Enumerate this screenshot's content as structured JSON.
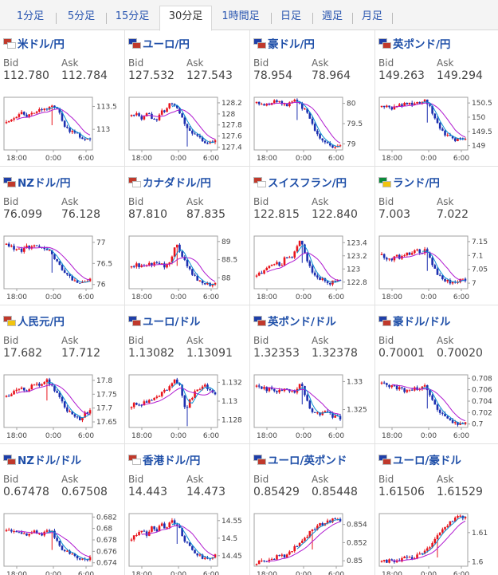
{
  "tabs": [
    {
      "label": "1分足",
      "active": false
    },
    {
      "label": "5分足",
      "active": false
    },
    {
      "label": "15分足",
      "active": false
    },
    {
      "label": "30分足",
      "active": true
    },
    {
      "label": "1時間足",
      "active": false
    },
    {
      "label": "日足",
      "active": false
    },
    {
      "label": "週足",
      "active": false
    },
    {
      "label": "月足",
      "active": false
    }
  ],
  "labels": {
    "bid": "Bid",
    "ask": "Ask"
  },
  "colors": {
    "up": "#e8141c",
    "down": "#1c2fb0",
    "ma_fast": "#0a8fd1",
    "ma_slow": "#b01ad0",
    "frame": "#a0a0a0",
    "title": "#1f4fa8"
  },
  "pairs": [
    {
      "name": "米ドル/円",
      "bid": "112.780",
      "ask": "112.784",
      "flag_colors": [
        "#c0392b",
        "#ffffff"
      ],
      "chart_data": {
        "type": "candlestick",
        "x_ticks": [
          "18:00",
          "0:00",
          "6:00"
        ],
        "y_ticks": [
          "113.5",
          "113"
        ],
        "ylim": [
          112.55,
          113.7
        ],
        "path": [
          113.15,
          113.2,
          113.3,
          113.35,
          113.3,
          113.4,
          113.35,
          113.45,
          113.4,
          113.55,
          113.5,
          113.3,
          113.05,
          112.95,
          112.9,
          112.85,
          112.8,
          112.78
        ],
        "spike": 9
      }
    },
    {
      "name": "ユーロ/円",
      "bid": "127.532",
      "ask": "127.543",
      "flag_colors": [
        "#1f3fa8",
        "#c0392b"
      ],
      "chart_data": {
        "type": "candlestick",
        "x_ticks": [
          "18:00",
          "0:00",
          "6:00"
        ],
        "y_ticks": [
          "128.2",
          "128",
          "127.8",
          "127.6",
          "127.4"
        ],
        "ylim": [
          127.35,
          128.3
        ],
        "path": [
          127.95,
          128.0,
          127.9,
          128.05,
          127.95,
          127.85,
          128.1,
          128.05,
          128.2,
          128.15,
          128.0,
          127.8,
          127.7,
          127.6,
          127.55,
          127.45,
          127.5,
          127.53
        ],
        "spike": 11
      }
    },
    {
      "name": "豪ドル/円",
      "bid": "78.954",
      "ask": "78.964",
      "flag_colors": [
        "#1f3fa8",
        "#c0392b"
      ],
      "chart_data": {
        "type": "candlestick",
        "x_ticks": [
          "18:00",
          "0:00",
          "6:00"
        ],
        "y_ticks": [
          "80",
          "79.5",
          "79"
        ],
        "ylim": [
          78.85,
          80.15
        ],
        "path": [
          80.05,
          80.0,
          79.95,
          80.0,
          80.05,
          80.0,
          79.95,
          80.05,
          80.1,
          79.95,
          79.8,
          79.55,
          79.3,
          79.1,
          79.0,
          78.95,
          78.9,
          78.95
        ],
        "spike": 8
      }
    },
    {
      "name": "英ポンド/円",
      "bid": "149.263",
      "ask": "149.294",
      "flag_colors": [
        "#1f3fa8",
        "#c0392b"
      ],
      "chart_data": {
        "type": "candlestick",
        "x_ticks": [
          "18:00",
          "0:00",
          "6:00"
        ],
        "y_ticks": [
          "150.5",
          "150",
          "149.5",
          "149"
        ],
        "ylim": [
          148.85,
          150.7
        ],
        "path": [
          150.35,
          150.4,
          150.3,
          150.45,
          150.4,
          150.5,
          150.45,
          150.55,
          150.5,
          150.6,
          150.3,
          149.9,
          149.6,
          149.4,
          149.3,
          149.2,
          149.25,
          149.28
        ],
        "spike": 9
      }
    },
    {
      "name": "NZドル/円",
      "bid": "76.099",
      "ask": "76.128",
      "flag_colors": [
        "#1f3fa8",
        "#c0392b"
      ],
      "chart_data": {
        "type": "candlestick",
        "x_ticks": [
          "18:00",
          "0:00",
          "6:00"
        ],
        "y_ticks": [
          "77",
          "76.5",
          "76"
        ],
        "ylim": [
          75.9,
          77.15
        ],
        "path": [
          76.95,
          76.9,
          76.85,
          76.8,
          76.9,
          76.85,
          76.95,
          76.9,
          76.85,
          76.8,
          76.6,
          76.4,
          76.25,
          76.15,
          76.1,
          76.05,
          76.08,
          76.1
        ],
        "spike": 9
      }
    },
    {
      "name": "カナダドル/円",
      "bid": "87.810",
      "ask": "87.835",
      "flag_colors": [
        "#c0392b",
        "#ffffff"
      ],
      "chart_data": {
        "type": "candlestick",
        "x_ticks": [
          "18:00",
          "0:00",
          "6:00"
        ],
        "y_ticks": [
          "89",
          "88.5",
          "88"
        ],
        "ylim": [
          87.7,
          89.15
        ],
        "path": [
          88.3,
          88.35,
          88.3,
          88.4,
          88.35,
          88.45,
          88.4,
          88.3,
          88.5,
          88.95,
          88.7,
          88.4,
          88.2,
          88.0,
          87.9,
          87.85,
          87.8,
          87.82
        ],
        "spike": 9
      }
    },
    {
      "name": "スイスフラン/円",
      "bid": "122.815",
      "ask": "122.840",
      "flag_colors": [
        "#c0392b",
        "#ffffff"
      ],
      "chart_data": {
        "type": "candlestick",
        "x_ticks": [
          "18:00",
          "0:00",
          "6:00"
        ],
        "y_ticks": [
          "123.4",
          "123.2",
          "123",
          "122.8"
        ],
        "ylim": [
          122.7,
          123.5
        ],
        "path": [
          122.9,
          122.95,
          123.0,
          123.05,
          123.1,
          123.05,
          123.2,
          123.15,
          123.3,
          123.45,
          123.2,
          123.0,
          122.9,
          122.85,
          122.8,
          122.78,
          122.82,
          122.83
        ],
        "spike": 9
      }
    },
    {
      "name": "ランド/円",
      "bid": "7.003",
      "ask": "7.022",
      "flag_colors": [
        "#0a8a3a",
        "#f1c40f"
      ],
      "chart_data": {
        "type": "candlestick",
        "x_ticks": [
          "18:00",
          "0:00",
          "6:00"
        ],
        "y_ticks": [
          "7.15",
          "7.1",
          "7.05",
          "7"
        ],
        "ylim": [
          6.98,
          7.17
        ],
        "path": [
          7.1,
          7.09,
          7.08,
          7.1,
          7.09,
          7.11,
          7.1,
          7.12,
          7.11,
          7.13,
          7.08,
          7.04,
          7.02,
          7.01,
          7.005,
          7.0,
          7.01,
          7.01
        ],
        "spike": 9
      }
    },
    {
      "name": "人民元/円",
      "bid": "17.682",
      "ask": "17.712",
      "flag_colors": [
        "#c0392b",
        "#f1c40f"
      ],
      "chart_data": {
        "type": "candlestick",
        "x_ticks": [
          "18:00",
          "0:00",
          "6:00"
        ],
        "y_ticks": [
          "17.8",
          "17.75",
          "17.7",
          "17.65"
        ],
        "ylim": [
          17.63,
          17.82
        ],
        "path": [
          17.74,
          17.75,
          17.76,
          17.77,
          17.76,
          17.78,
          17.79,
          17.78,
          17.8,
          17.79,
          17.76,
          17.73,
          17.7,
          17.68,
          17.67,
          17.66,
          17.68,
          17.69
        ],
        "spike": 8
      }
    },
    {
      "name": "ユーロ/ドル",
      "bid": "1.13082",
      "ask": "1.13091",
      "flag_colors": [
        "#1f3fa8",
        "#c0392b"
      ],
      "chart_data": {
        "type": "candlestick",
        "x_ticks": [
          "18:00",
          "0:00",
          "6:00"
        ],
        "y_ticks": [
          "1.132",
          "1.13",
          "1.128"
        ],
        "ylim": [
          1.1272,
          1.1328
        ],
        "path": [
          1.1295,
          1.1298,
          1.1296,
          1.13,
          1.1302,
          1.1305,
          1.1308,
          1.1312,
          1.1318,
          1.1322,
          1.1316,
          1.1288,
          1.1302,
          1.131,
          1.1314,
          1.1316,
          1.131,
          1.1308
        ],
        "spike": 11
      }
    },
    {
      "name": "英ポンド/ドル",
      "bid": "1.32353",
      "ask": "1.32378",
      "flag_colors": [
        "#1f3fa8",
        "#c0392b"
      ],
      "chart_data": {
        "type": "candlestick",
        "x_ticks": [
          "18:00",
          "0:00",
          "6:00"
        ],
        "y_ticks": [
          "1.33",
          "1.325"
        ],
        "ylim": [
          1.3218,
          1.3312
        ],
        "path": [
          1.3292,
          1.329,
          1.3286,
          1.3288,
          1.3284,
          1.3282,
          1.3286,
          1.328,
          1.3284,
          1.33,
          1.327,
          1.3248,
          1.324,
          1.3244,
          1.3246,
          1.324,
          1.3236,
          1.3235
        ],
        "spike": 9
      }
    },
    {
      "name": "豪ドル/ドル",
      "bid": "0.70001",
      "ask": "0.70020",
      "flag_colors": [
        "#1f3fa8",
        "#c0392b"
      ],
      "chart_data": {
        "type": "candlestick",
        "x_ticks": [
          "18:00",
          "0:00",
          "6:00"
        ],
        "y_ticks": [
          "0.708",
          "0.706",
          "0.704",
          "0.702",
          "0.7"
        ],
        "ylim": [
          0.6994,
          0.7086
        ],
        "path": [
          0.7074,
          0.707,
          0.7066,
          0.7064,
          0.706,
          0.7058,
          0.706,
          0.7062,
          0.7064,
          0.7066,
          0.7048,
          0.703,
          0.7018,
          0.701,
          0.7004,
          0.7002,
          0.7,
          0.7001
        ],
        "spike": 9
      }
    },
    {
      "name": "NZドル/ドル",
      "bid": "0.67478",
      "ask": "0.67508",
      "flag_colors": [
        "#1f3fa8",
        "#c0392b"
      ],
      "chart_data": {
        "type": "candlestick",
        "x_ticks": [
          "18:00",
          "0:00",
          "6:00"
        ],
        "y_ticks": [
          "0.682",
          "0.68",
          "0.678",
          "0.676",
          "0.674"
        ],
        "ylim": [
          0.6734,
          0.6826
        ],
        "path": [
          0.68,
          0.6796,
          0.6792,
          0.6794,
          0.679,
          0.6796,
          0.6792,
          0.6788,
          0.6794,
          0.6798,
          0.6782,
          0.6768,
          0.676,
          0.6756,
          0.6752,
          0.6748,
          0.6746,
          0.6748
        ],
        "spike": 9
      }
    },
    {
      "name": "香港ドル/円",
      "bid": "14.443",
      "ask": "14.473",
      "flag_colors": [
        "#c0392b",
        "#ffffff"
      ],
      "chart_data": {
        "type": "candlestick",
        "x_ticks": [
          "18:00",
          "0:00",
          "6:00"
        ],
        "y_ticks": [
          "14.55",
          "14.5",
          "14.45"
        ],
        "ylim": [
          14.42,
          14.57
        ],
        "path": [
          14.5,
          14.51,
          14.52,
          14.51,
          14.53,
          14.52,
          14.54,
          14.53,
          14.55,
          14.54,
          14.52,
          14.49,
          14.47,
          14.46,
          14.45,
          14.44,
          14.445,
          14.45
        ],
        "spike": 9
      }
    },
    {
      "name": "ユーロ/英ポンド",
      "bid": "0.85429",
      "ask": "0.85448",
      "flag_colors": [
        "#1f3fa8",
        "#c0392b"
      ],
      "chart_data": {
        "type": "candlestick",
        "x_ticks": [
          "18:00",
          "0:00",
          "6:00"
        ],
        "y_ticks": [
          "0.854",
          "0.852",
          "0.85"
        ],
        "ylim": [
          0.8494,
          0.8552
        ],
        "path": [
          0.8498,
          0.85,
          0.8499,
          0.8502,
          0.8504,
          0.8506,
          0.8504,
          0.851,
          0.8516,
          0.8522,
          0.8526,
          0.8532,
          0.8536,
          0.854,
          0.8542,
          0.8544,
          0.8546,
          0.8543
        ],
        "spike": 11
      }
    },
    {
      "name": "ユーロ/豪ドル",
      "bid": "1.61506",
      "ask": "1.61529",
      "flag_colors": [
        "#1f3fa8",
        "#c0392b"
      ],
      "chart_data": {
        "type": "candlestick",
        "x_ticks": [
          "18:00",
          "0:00",
          "6:00"
        ],
        "y_ticks": [
          "1.61",
          "1.6"
        ],
        "ylim": [
          1.5985,
          1.6165
        ],
        "path": [
          1.6,
          1.6003,
          1.6006,
          1.6004,
          1.601,
          1.6014,
          1.6012,
          1.602,
          1.603,
          1.6042,
          1.6058,
          1.608,
          1.61,
          1.612,
          1.6138,
          1.6152,
          1.6156,
          1.6151
        ],
        "spike": 11
      }
    }
  ]
}
